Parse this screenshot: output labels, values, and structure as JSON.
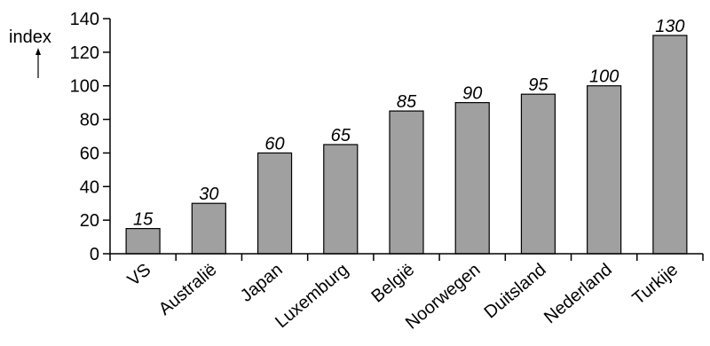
{
  "chart_data": {
    "type": "bar",
    "ylabel": "index",
    "xlabel": "",
    "title": "",
    "categories": [
      "VS",
      "Australië",
      "Japan",
      "Luxemburg",
      "België",
      "Noorwegen",
      "Duitsland",
      "Nederland",
      "Turkije"
    ],
    "values": [
      15,
      30,
      60,
      65,
      85,
      90,
      95,
      100,
      130
    ],
    "data_labels": [
      "15",
      "30",
      "60",
      "65",
      "85",
      "90",
      "95",
      "100",
      "130"
    ],
    "ylim": [
      0,
      140
    ],
    "yticks": [
      0,
      20,
      40,
      60,
      80,
      100,
      120,
      140
    ],
    "grid": false,
    "legend": "none",
    "colors": {
      "bar_fill": "#a0a0a0",
      "bar_stroke": "#000000",
      "axis": "#000000"
    }
  }
}
